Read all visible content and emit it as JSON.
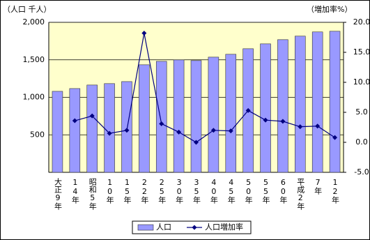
{
  "chart_data": {
    "type": "bar-line",
    "y_label": "（人口 千人）",
    "y2_label": "（増加率%）",
    "categories": [
      "大正9年",
      "14年",
      "昭和5年",
      "10年",
      "15年",
      "22年",
      "25年",
      "30年",
      "35年",
      "40年",
      "45年",
      "50年",
      "55年",
      "60年",
      "平成2年",
      "7年",
      "12年"
    ],
    "series": [
      {
        "name": "人口",
        "type": "bar",
        "color": "#9999ff",
        "values": [
          1080,
          1117,
          1164,
          1183,
          1210,
          1434,
          1480,
          1499,
          1490,
          1536,
          1574,
          1648,
          1713,
          1769,
          1816,
          1872,
          1881
        ]
      },
      {
        "name": "人口増加率",
        "type": "line",
        "axis": "y2",
        "color": "#000080",
        "values": [
          null,
          3.6,
          4.4,
          1.5,
          2.0,
          18.2,
          3.1,
          1.7,
          0.0,
          2.0,
          1.9,
          5.3,
          3.7,
          3.5,
          2.6,
          2.7,
          0.8
        ]
      }
    ],
    "ylim": [
      0,
      2000
    ],
    "yticks": [
      500,
      {
        "value": 1000,
        "label": "1,000"
      },
      {
        "value": 1500,
        "label": "1,500"
      },
      {
        "value": 2000,
        "label": "2,000"
      }
    ],
    "y2lim": [
      -5,
      20
    ],
    "y2ticks": [
      {
        "value": -5,
        "label": "-5.0"
      },
      {
        "value": 0,
        "label": "0.0"
      },
      {
        "value": 5,
        "label": "5.0"
      },
      {
        "value": 10,
        "label": "10.0"
      },
      {
        "value": 15,
        "label": "15.0"
      },
      {
        "value": 20,
        "label": "20.0"
      }
    ],
    "grid": true,
    "legend": "bottom"
  }
}
